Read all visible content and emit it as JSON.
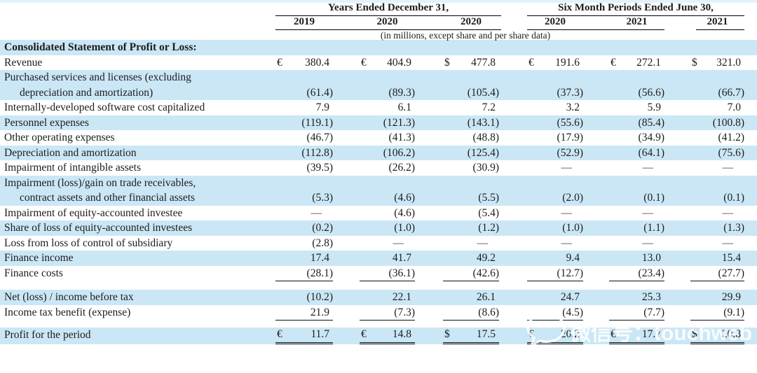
{
  "header": {
    "group1": {
      "title": "Years Ended December 31,",
      "years": [
        "2019",
        "2020",
        "2020"
      ]
    },
    "group2": {
      "title": "Six Month Periods Ended June 30,",
      "years": [
        "2020",
        "2021",
        "2021"
      ]
    },
    "note": "(in millions, except share and per share data)"
  },
  "section_title": "Consolidated Statement of Profit or Loss:",
  "columns": [
    {
      "currency": "€"
    },
    {
      "currency": "€"
    },
    {
      "currency": "$"
    },
    {
      "currency": "€"
    },
    {
      "currency": "€"
    },
    {
      "currency": "$"
    }
  ],
  "rows": [
    {
      "label": "Revenue",
      "cur": true,
      "shade": false,
      "values": [
        "380.4",
        "404.9",
        "477.8",
        "191.6",
        "272.1",
        "321.0"
      ]
    },
    {
      "label": "Purchased services and licenses (excluding",
      "label2": "depreciation and amortization)",
      "shade": true,
      "values": [
        "(61.4)",
        "(89.3)",
        "(105.4)",
        "(37.3)",
        "(56.6)",
        "(66.7)"
      ]
    },
    {
      "label": "Internally-developed software cost capitalized",
      "shade": false,
      "values": [
        "7.9",
        "6.1",
        "7.2",
        "3.2",
        "5.9",
        "7.0"
      ]
    },
    {
      "label": "Personnel expenses",
      "shade": true,
      "values": [
        "(119.1)",
        "(121.3)",
        "(143.1)",
        "(55.6)",
        "(85.4)",
        "(100.8)"
      ]
    },
    {
      "label": "Other operating expenses",
      "shade": false,
      "values": [
        "(46.7)",
        "(41.3)",
        "(48.8)",
        "(17.9)",
        "(34.9)",
        "(41.2)"
      ]
    },
    {
      "label": "Depreciation and amortization",
      "shade": true,
      "values": [
        "(112.8)",
        "(106.2)",
        "(125.4)",
        "(52.9)",
        "(64.1)",
        "(75.6)"
      ]
    },
    {
      "label": "Impairment of intangible assets",
      "shade": false,
      "values": [
        "(39.5)",
        "(26.2)",
        "(30.9)",
        "—",
        "—",
        "—"
      ]
    },
    {
      "label": "Impairment (loss)/gain on trade receivables,",
      "label2": "contract assets and other financial assets",
      "shade": true,
      "values": [
        "(5.3)",
        "(4.6)",
        "(5.5)",
        "(2.0)",
        "(0.1)",
        "(0.1)"
      ]
    },
    {
      "label": "Impairment of equity-accounted investee",
      "shade": false,
      "values": [
        "—",
        "(4.6)",
        "(5.4)",
        "—",
        "—",
        "—"
      ]
    },
    {
      "label": "Share of loss of equity-accounted investees",
      "shade": true,
      "values": [
        "(0.2)",
        "(1.0)",
        "(1.2)",
        "(1.0)",
        "(1.1)",
        "(1.3)"
      ]
    },
    {
      "label": "Loss from loss of control of subsidiary",
      "shade": false,
      "values": [
        "(2.8)",
        "—",
        "—",
        "—",
        "—",
        "—"
      ]
    },
    {
      "label": "Finance income",
      "shade": true,
      "values": [
        "17.4",
        "41.7",
        "49.2",
        "9.4",
        "13.0",
        "15.4"
      ]
    },
    {
      "label": "Finance costs",
      "shade": false,
      "rule": "single",
      "values": [
        "(28.1)",
        "(36.1)",
        "(42.6)",
        "(12.7)",
        "(23.4)",
        "(27.7)"
      ]
    },
    {
      "spacer": 12
    },
    {
      "label": "Net (loss) / income before tax",
      "shade": true,
      "values": [
        "(10.2)",
        "22.1",
        "26.1",
        "24.7",
        "25.3",
        "29.9"
      ]
    },
    {
      "label": "Income tax benefit (expense)",
      "shade": false,
      "rule": "single",
      "values": [
        "21.9",
        "(7.3)",
        "(8.6)",
        "(4.5)",
        "(7.7)",
        "(9.1)"
      ]
    },
    {
      "spacer": 10
    },
    {
      "label": "Profit for the period",
      "cur": true,
      "shade": true,
      "rule": "double",
      "values": [
        "11.7",
        "14.8",
        "17.5",
        "20.2",
        "17.7",
        "20.8"
      ]
    }
  ],
  "watermark": {
    "icon": "wechat-icon",
    "text": "微信号：touchweb"
  }
}
